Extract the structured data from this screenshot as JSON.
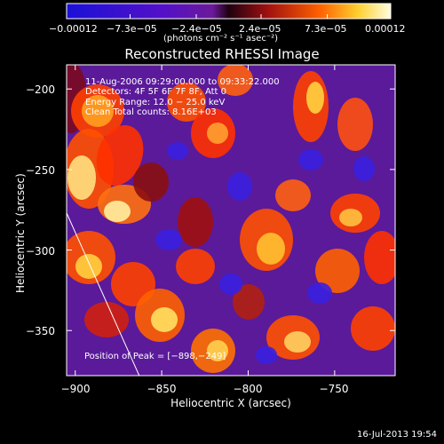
{
  "chart_data": {
    "type": "heatmap",
    "title": "Reconstructed RHESSI Image",
    "xlabel": "Heliocentric X (arcsec)",
    "ylabel": "Heliocentric Y (arcsec)",
    "xlim": [
      -905,
      -715
    ],
    "ylim": [
      -378,
      -185
    ],
    "x_ticks": [
      "−900",
      "−850",
      "−800",
      "−750"
    ],
    "x_tick_values": [
      -900,
      -850,
      -800,
      -750
    ],
    "y_ticks": [
      "−200",
      "−250",
      "−300",
      "−350"
    ],
    "y_tick_values": [
      -200,
      -250,
      -300,
      -350
    ],
    "colorbar": {
      "range": [
        -0.00012,
        0.00012
      ],
      "ticks": [
        "−0.00012",
        "−7.3e−05",
        "−2.4e−05",
        "2.4e−05",
        "7.3e−05",
        "0.00012"
      ],
      "tick_values": [
        -0.00012,
        -7.3e-05,
        -2.4e-05,
        2.4e-05,
        7.3e-05,
        0.00012
      ],
      "unit_label": "(photons cm⁻² s⁻¹ asec⁻²)"
    },
    "annotations": [
      "11-Aug-2006 09:29:00.000 to 09:33:22.000",
      "Detectors: 4F 5F 6F 7F 8F, Att 0",
      "Energy Range: 12.0 − 25.0 keV",
      "Clean    Total counts: 8.16E+03"
    ],
    "peak_label": "Position of Peak = [−898,−249]",
    "peak_position": [
      -898,
      -249
    ],
    "limb_line": [
      [
        -905,
        -277
      ],
      [
        -863,
        -378
      ]
    ],
    "grid": false
  },
  "footer": {
    "timestamp": "16-Jul-2013 19:54"
  }
}
